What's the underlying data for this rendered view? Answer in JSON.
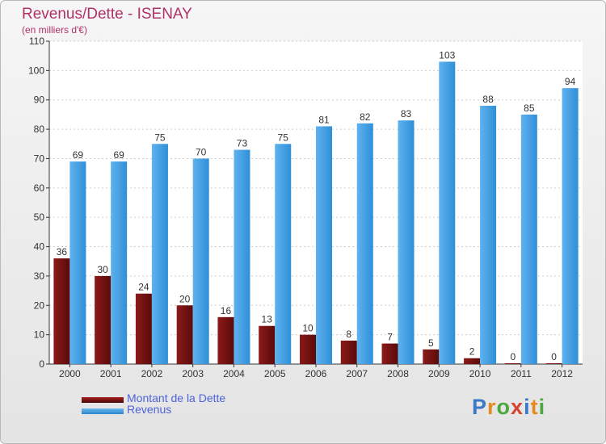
{
  "chart_data": {
    "type": "bar",
    "title": "Revenus/Dette - ISENAY",
    "subtitle": "(en milliers d'€)",
    "categories": [
      "2000",
      "2001",
      "2002",
      "2003",
      "2004",
      "2005",
      "2006",
      "2007",
      "2008",
      "2009",
      "2010",
      "2011",
      "2012"
    ],
    "series": [
      {
        "name": "Montant de la Dette",
        "color": "#7a1010",
        "values": [
          36,
          30,
          24,
          20,
          16,
          13,
          10,
          8,
          7,
          5,
          2,
          0,
          0
        ]
      },
      {
        "name": "Revenus",
        "color": "#3d9ce0",
        "values": [
          69,
          69,
          75,
          70,
          73,
          75,
          81,
          82,
          83,
          103,
          88,
          85,
          94
        ]
      }
    ],
    "yticks": [
      0,
      10,
      20,
      30,
      40,
      50,
      60,
      70,
      80,
      90,
      100,
      110
    ],
    "ylim": [
      0,
      110
    ],
    "grid": true,
    "legend_position": "bottom-left"
  },
  "logo": {
    "letters": [
      {
        "ch": "P",
        "color": "#3a78c8"
      },
      {
        "ch": "r",
        "color": "#e58a1f"
      },
      {
        "ch": "o",
        "color": "#4aa83f"
      },
      {
        "ch": "x",
        "color": "#d64530"
      },
      {
        "ch": "i",
        "color": "#3a78c8"
      },
      {
        "ch": "t",
        "color": "#e58a1f"
      },
      {
        "ch": "i",
        "color": "#4aa83f"
      }
    ]
  }
}
